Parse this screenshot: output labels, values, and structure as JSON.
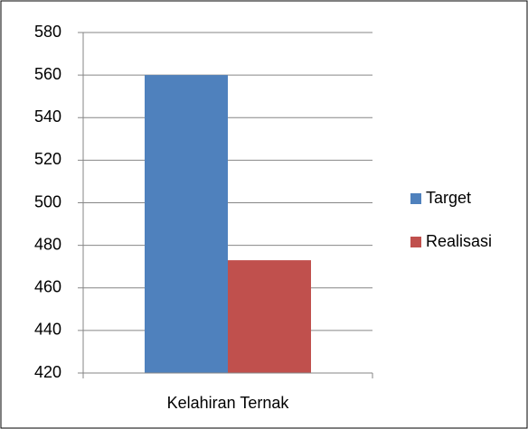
{
  "chart_data": {
    "type": "bar",
    "categories": [
      "Kelahiran Ternak"
    ],
    "series": [
      {
        "name": "Target",
        "color": "#4f81bd",
        "values": [
          560
        ]
      },
      {
        "name": "Realisasi",
        "color": "#c0504d",
        "values": [
          473
        ]
      }
    ],
    "ylim": [
      420,
      580
    ],
    "yticks": [
      420,
      440,
      460,
      480,
      500,
      520,
      540,
      560,
      580
    ],
    "grid": true,
    "legend": "right"
  }
}
